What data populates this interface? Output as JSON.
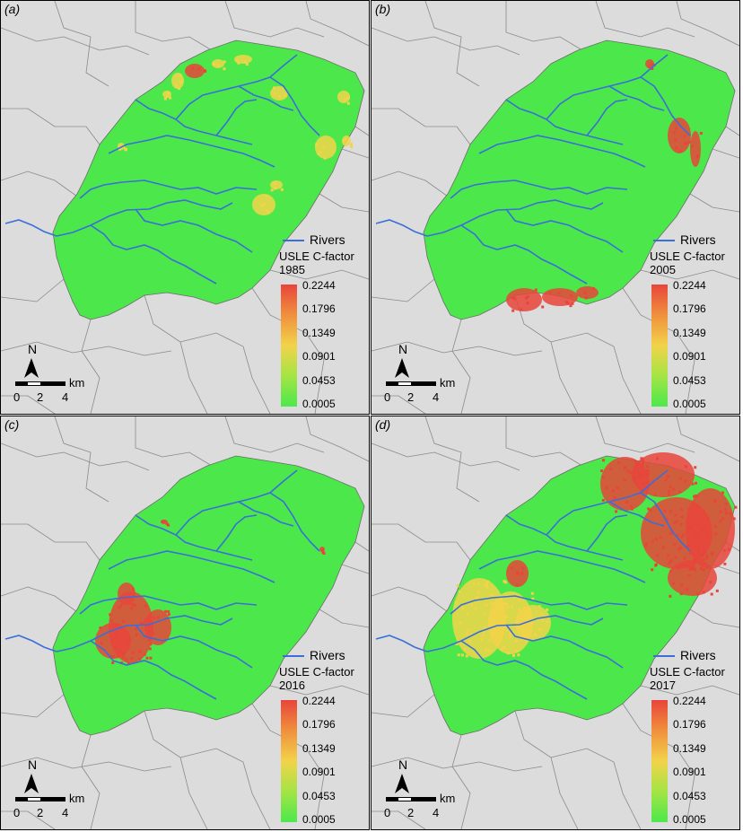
{
  "panels": [
    {
      "label": "(a)",
      "year": "1985"
    },
    {
      "label": "(b)",
      "year": "2005"
    },
    {
      "label": "(c)",
      "year": "2016"
    },
    {
      "label": "(d)",
      "year": "2017"
    }
  ],
  "legend": {
    "rivers": "Rivers",
    "title": "USLE C-factor",
    "ticks": [
      "0.2244",
      "0.1796",
      "0.1349",
      "0.0901",
      "0.0453",
      "0.0005"
    ],
    "ramp_colors": [
      "#e8453b",
      "#f0903d",
      "#f2d34a",
      "#a4e445",
      "#4ce84b"
    ]
  },
  "scalebar": {
    "north": "N",
    "unit": "km",
    "labels": [
      "0",
      "2",
      "4"
    ]
  },
  "colors": {
    "background": "#dcdcdc",
    "catchment": "#4ce84b",
    "river": "#3a6fd8",
    "high": "#e8453b",
    "mid": "#f2d34a"
  }
}
